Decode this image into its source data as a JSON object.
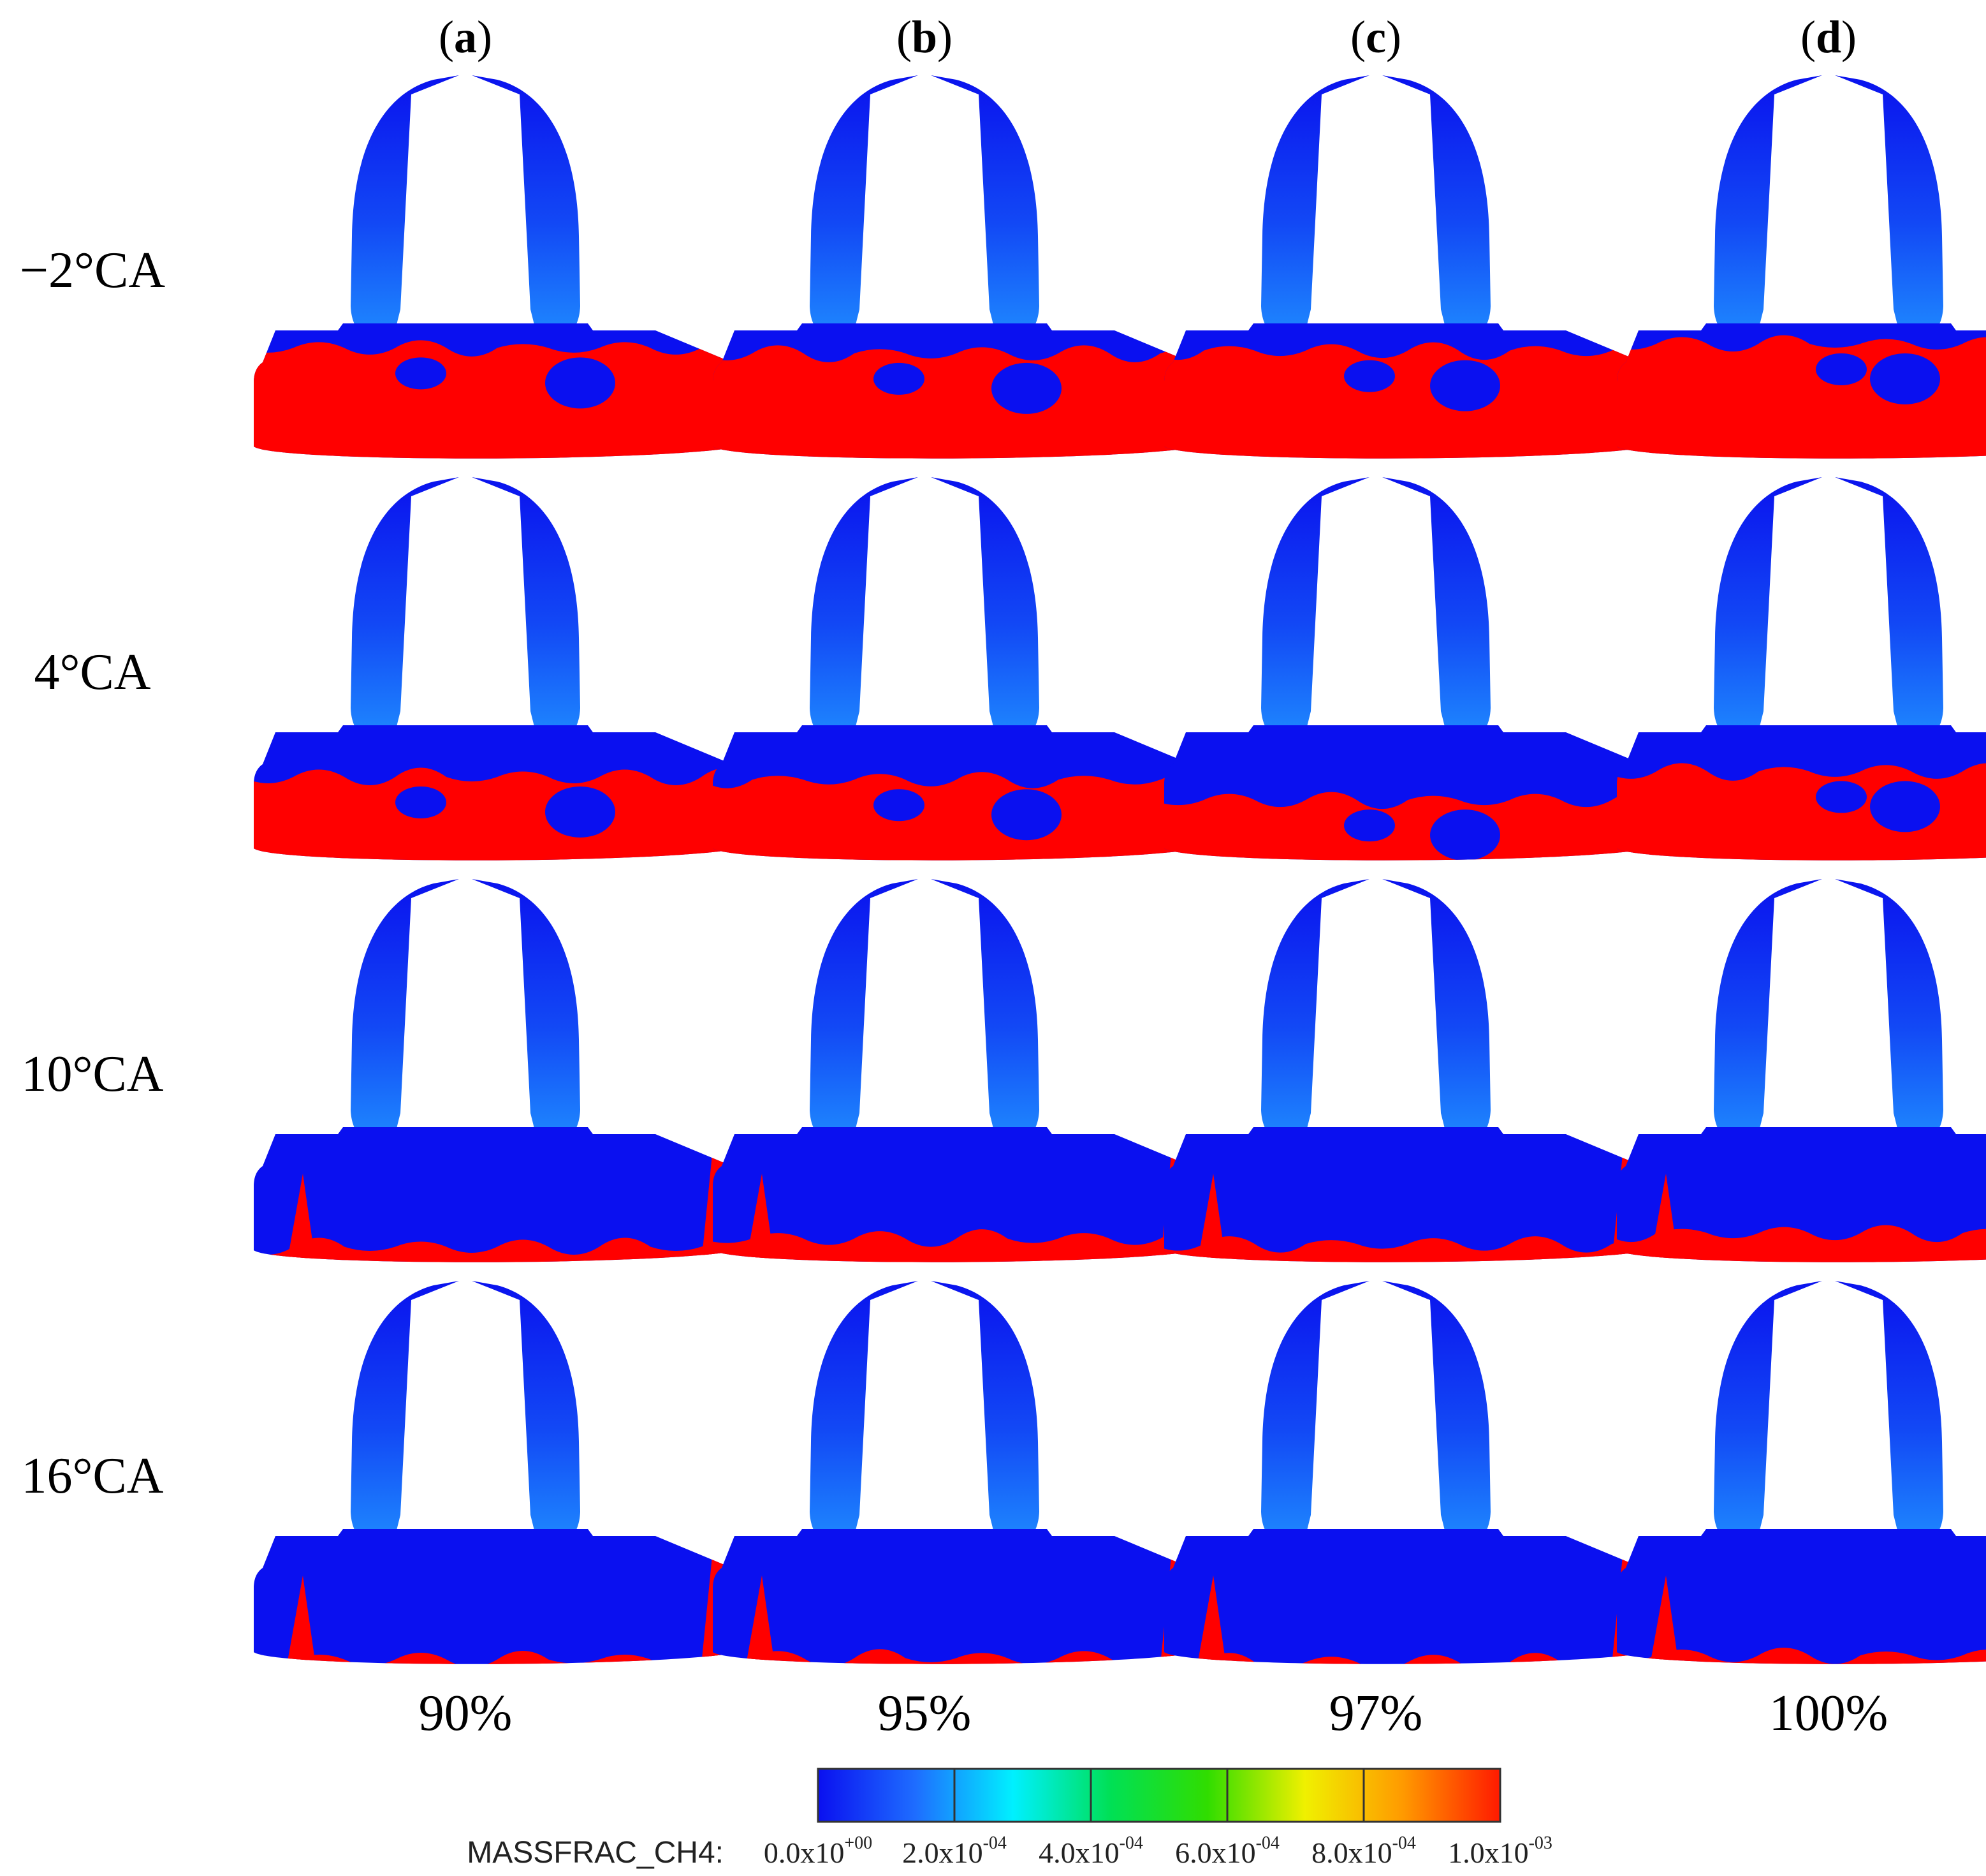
{
  "columns": [
    {
      "open": "(",
      "letter": "a",
      "close": ")",
      "percent": "90%"
    },
    {
      "open": "(",
      "letter": "b",
      "close": ")",
      "percent": "95%"
    },
    {
      "open": "(",
      "letter": "c",
      "close": ")",
      "percent": "97%"
    },
    {
      "open": "(",
      "letter": "d",
      "close": ")",
      "percent": "100%"
    }
  ],
  "rows": [
    "−2°CA",
    "4°CA",
    "10°CA",
    "16°CA"
  ],
  "red_fraction": [
    [
      0.82,
      0.78,
      0.8,
      0.85
    ],
    [
      0.62,
      0.6,
      0.45,
      0.66
    ],
    [
      0.12,
      0.18,
      0.14,
      0.22
    ],
    [
      0.04,
      0.05,
      0.02,
      0.07
    ]
  ],
  "colorbar": {
    "label": "MASSFRAC_CH4:",
    "ticks": [
      {
        "mantissa": "0.0x10",
        "exp": "+00"
      },
      {
        "mantissa": "2.0x10",
        "exp": "-04"
      },
      {
        "mantissa": "4.0x10",
        "exp": "-04"
      },
      {
        "mantissa": "6.0x10",
        "exp": "-04"
      },
      {
        "mantissa": "8.0x10",
        "exp": "-04"
      },
      {
        "mantissa": "1.0x10",
        "exp": "-03"
      }
    ],
    "colors": [
      "#0a10f0",
      "#1e6dff",
      "#00f0ff",
      "#00e055",
      "#30dd00",
      "#f0f000",
      "#ff9a00",
      "#ff1a00"
    ]
  }
}
